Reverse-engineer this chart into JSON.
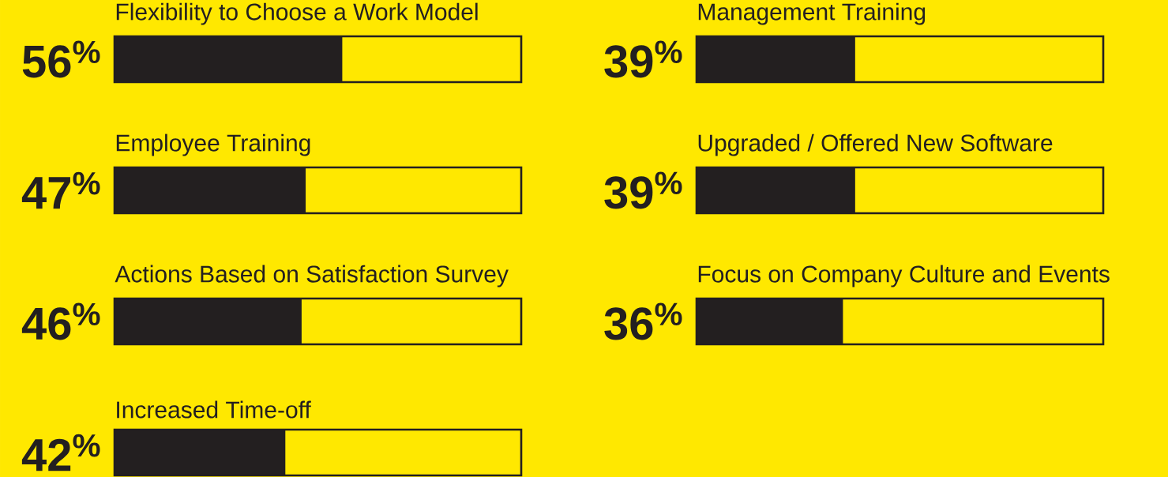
{
  "chart_data": [
    {
      "type": "bar",
      "orientation": "horizontal",
      "categories": [
        "Flexibility to Choose a Work Model",
        "Employee Training",
        "Actions Based on Satisfaction Survey",
        "Increased Time-off"
      ],
      "values": [
        56,
        47,
        46,
        42
      ],
      "value_labels": [
        "56$^{%}$",
        "47$^{%}$",
        "46$^{%}$",
        "42$^{%}$"
      ],
      "color": "#231f20",
      "xlim": [
        0,
        100
      ],
      "tick_labels": false
    },
    {
      "type": "bar",
      "orientation": "horizontal",
      "categories": [
        "Management Training",
        "Upgraded / Offered New Software",
        "Focus on Company Culture and Events"
      ],
      "values": [
        39,
        39,
        36
      ],
      "value_labels": [
        "39$^{%}$",
        "39$^{%}$",
        "36$^{%}$"
      ],
      "color": "#231f20",
      "xlim": [
        0,
        100
      ],
      "tick_labels": false
    }
  ]
}
